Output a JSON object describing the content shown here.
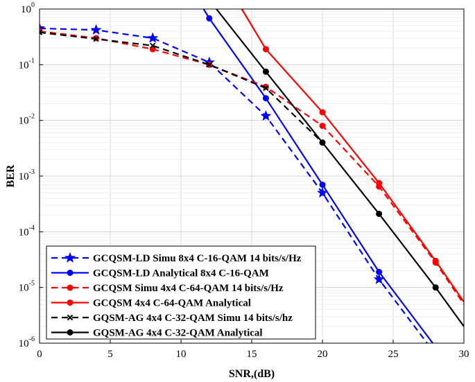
{
  "chart_data": {
    "type": "line",
    "xlabel": "SNR,(dB)",
    "ylabel": "BER",
    "xlim": [
      0,
      30
    ],
    "ylim": [
      1e-06,
      1
    ],
    "yscale": "log",
    "grid": true,
    "legend_position": "bottom-left",
    "x_ticks": [
      {
        "value": 0,
        "label": "0"
      },
      {
        "value": 5,
        "label": "5"
      },
      {
        "value": 10,
        "label": "10"
      },
      {
        "value": 15,
        "label": "15"
      },
      {
        "value": 20,
        "label": "20"
      },
      {
        "value": 25,
        "label": "25"
      },
      {
        "value": 30,
        "label": "30"
      }
    ],
    "y_ticks": [
      {
        "value": 1,
        "base": "10",
        "exp": "0"
      },
      {
        "value": 0.1,
        "base": "10",
        "exp": "-1"
      },
      {
        "value": 0.01,
        "base": "10",
        "exp": "-2"
      },
      {
        "value": 0.001,
        "base": "10",
        "exp": "-3"
      },
      {
        "value": 0.0001,
        "base": "10",
        "exp": "-4"
      },
      {
        "value": 1e-05,
        "base": "10",
        "exp": "-5"
      },
      {
        "value": 1e-06,
        "base": "10",
        "exp": "-6"
      }
    ],
    "series": [
      {
        "name": "GCQSM-LD Simu 8x4 C-16-QAM 14 bits/s/Hz",
        "color": "#0000ff",
        "dash": true,
        "marker": "star",
        "x": [
          0,
          4,
          8,
          12,
          16,
          20,
          24,
          27.4
        ],
        "y": [
          0.45,
          0.42,
          0.3,
          0.11,
          0.012,
          0.0005,
          1.4e-05,
          1e-06
        ],
        "markers_x": [
          0,
          4,
          8,
          12,
          16,
          20,
          24
        ],
        "markers_y": [
          0.45,
          0.42,
          0.3,
          0.11,
          0.012,
          0.0005,
          1.4e-05
        ]
      },
      {
        "name": "GCQSM-LD Analytical 8x4 C-16-QAM",
        "color": "#0000ff",
        "dash": false,
        "marker": "circle",
        "x": [
          11.6,
          12,
          16,
          20,
          24,
          27.8
        ],
        "y": [
          1,
          0.68,
          0.025,
          0.0007,
          1.9e-05,
          1e-06
        ],
        "markers_x": [
          12,
          16,
          20,
          24
        ],
        "markers_y": [
          0.68,
          0.025,
          0.0007,
          1.9e-05
        ]
      },
      {
        "name": "GCQSM Simu 4x4 C-64-QAM 14 bits/s/Hz",
        "color": "#ff0000",
        "dash": true,
        "marker": "circle",
        "x": [
          0,
          4,
          8,
          12,
          16,
          20,
          24,
          28,
          30
        ],
        "y": [
          0.4,
          0.3,
          0.19,
          0.1,
          0.04,
          0.008,
          0.00065,
          2.8e-05,
          5e-06
        ],
        "markers_x": [
          0,
          4,
          8,
          12,
          16,
          20,
          24,
          28
        ],
        "markers_y": [
          0.4,
          0.3,
          0.19,
          0.1,
          0.04,
          0.008,
          0.00065,
          2.8e-05
        ]
      },
      {
        "name": "GCQSM 4x4 C-64-QAM Analytical",
        "color": "#ff0000",
        "dash": false,
        "marker": "circle",
        "x": [
          14.3,
          16,
          20,
          24,
          28,
          30
        ],
        "y": [
          1,
          0.19,
          0.014,
          0.00075,
          3e-05,
          5.5e-06
        ],
        "markers_x": [
          16,
          20,
          24,
          28
        ],
        "markers_y": [
          0.19,
          0.014,
          0.00075,
          3e-05
        ]
      },
      {
        "name": "GQSM-AG 4x4 C-32-QAM Simu 14 bits/s/hz",
        "color": "#000000",
        "dash": true,
        "marker": "x",
        "x": [
          0,
          4,
          8,
          12,
          16,
          20
        ],
        "y": [
          0.38,
          0.29,
          0.22,
          0.1,
          0.038,
          0.004
        ],
        "markers_x": [
          0,
          4,
          8,
          12,
          16
        ],
        "markers_y": [
          0.38,
          0.29,
          0.22,
          0.1,
          0.038
        ]
      },
      {
        "name": "GQSM-AG 4x4 C-32-QAM Analytical",
        "color": "#000000",
        "dash": false,
        "marker": "circle",
        "x": [
          12.5,
          16,
          20,
          24,
          28,
          30
        ],
        "y": [
          1,
          0.075,
          0.004,
          0.00021,
          1e-05,
          2e-06
        ],
        "markers_x": [
          16,
          20,
          24,
          28
        ],
        "markers_y": [
          0.075,
          0.004,
          0.00021,
          1e-05
        ]
      }
    ]
  }
}
